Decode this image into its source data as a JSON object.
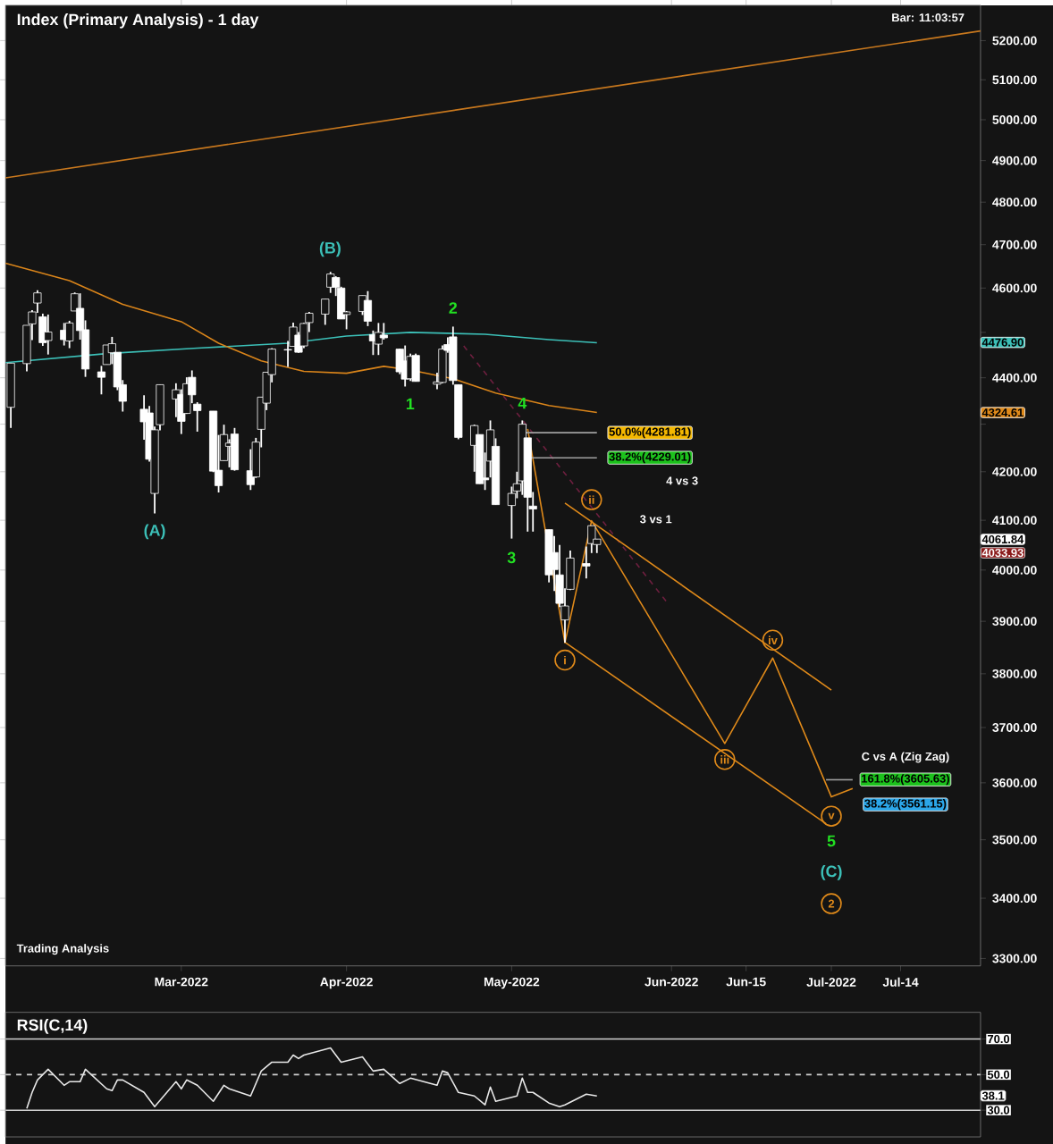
{
  "chart_data": [
    {
      "type": "candlestick",
      "title": "Index (Primary Analysis) - 1 day",
      "color": "#ffffff",
      "log": true,
      "x": [
        "2022-01-28",
        "2022-01-31",
        "2022-02-01",
        "2022-02-02",
        "2022-02-03",
        "2022-02-04",
        "2022-02-07",
        "2022-02-08",
        "2022-02-09",
        "2022-02-10",
        "2022-02-11",
        "2022-02-14",
        "2022-02-15",
        "2022-02-16",
        "2022-02-17",
        "2022-02-18",
        "2022-02-22",
        "2022-02-23",
        "2022-02-24",
        "2022-02-25",
        "2022-02-28",
        "2022-03-01",
        "2022-03-02",
        "2022-03-03",
        "2022-03-04",
        "2022-03-07",
        "2022-03-08",
        "2022-03-09",
        "2022-03-10",
        "2022-03-11",
        "2022-03-14",
        "2022-03-15",
        "2022-03-16",
        "2022-03-17",
        "2022-03-18",
        "2022-03-21",
        "2022-03-22",
        "2022-03-23",
        "2022-03-24",
        "2022-03-25",
        "2022-03-28",
        "2022-03-29",
        "2022-03-30",
        "2022-03-31",
        "2022-04-01",
        "2022-04-04",
        "2022-04-05",
        "2022-04-06",
        "2022-04-07",
        "2022-04-08",
        "2022-04-11",
        "2022-04-12",
        "2022-04-13",
        "2022-04-14",
        "2022-04-18",
        "2022-04-19",
        "2022-04-20",
        "2022-04-21",
        "2022-04-22",
        "2022-04-25",
        "2022-04-26",
        "2022-04-27",
        "2022-04-28",
        "2022-04-29",
        "2022-05-02",
        "2022-05-03",
        "2022-05-04",
        "2022-05-05",
        "2022-05-06",
        "2022-05-09",
        "2022-05-10",
        "2022-05-11",
        "2022-05-12",
        "2022-05-13",
        "2022-05-16",
        "2022-05-17",
        "2022-05-18"
      ],
      "ohlc": [
        [
          4336,
          4432,
          4292,
          4432
        ],
        [
          4431,
          4516,
          4414,
          4516
        ],
        [
          4519,
          4550,
          4483,
          4546
        ],
        [
          4566,
          4595,
          4544,
          4589
        ],
        [
          4535,
          4542,
          4470,
          4477
        ],
        [
          4482,
          4540,
          4451,
          4501
        ],
        [
          4505,
          4521,
          4471,
          4484
        ],
        [
          4481,
          4526,
          4465,
          4521
        ],
        [
          4548,
          4590,
          4548,
          4587
        ],
        [
          4554,
          4588,
          4484,
          4504
        ],
        [
          4506,
          4527,
          4402,
          4419
        ],
        [
          4413,
          4426,
          4364,
          4401
        ],
        [
          4429,
          4472,
          4429,
          4472
        ],
        [
          4455,
          4490,
          4430,
          4475
        ],
        [
          4456,
          4456,
          4373,
          4380
        ],
        [
          4385,
          4395,
          4327,
          4349
        ],
        [
          4332,
          4362,
          4267,
          4305
        ],
        [
          4324,
          4339,
          4221,
          4226
        ],
        [
          4155,
          4295,
          4114,
          4288
        ],
        [
          4299,
          4385,
          4287,
          4385
        ],
        [
          4354,
          4388,
          4315,
          4374
        ],
        [
          4364,
          4375,
          4279,
          4306
        ],
        [
          4323,
          4401,
          4322,
          4387
        ],
        [
          4401,
          4416,
          4345,
          4363
        ],
        [
          4343,
          4347,
          4284,
          4329
        ],
        [
          4328,
          4328,
          4199,
          4201
        ],
        [
          4203,
          4277,
          4157,
          4171
        ],
        [
          4223,
          4299,
          4223,
          4278
        ],
        [
          4253,
          4268,
          4209,
          4260
        ],
        [
          4279,
          4292,
          4202,
          4204
        ],
        [
          4202,
          4247,
          4162,
          4173
        ],
        [
          4189,
          4271,
          4187,
          4262
        ],
        [
          4289,
          4358,
          4251,
          4358
        ],
        [
          4345,
          4412,
          4330,
          4412
        ],
        [
          4407,
          4465,
          4390,
          4463
        ],
        [
          4462,
          4481,
          4424,
          4461
        ],
        [
          4469,
          4522,
          4469,
          4512
        ],
        [
          4494,
          4501,
          4455,
          4456
        ],
        [
          4470,
          4521,
          4465,
          4520
        ],
        [
          4522,
          4546,
          4501,
          4543
        ],
        [
          4541,
          4575,
          4517,
          4575
        ],
        [
          4602,
          4637,
          4589,
          4632
        ],
        [
          4624,
          4627,
          4582,
          4602
        ],
        [
          4600,
          4603,
          4530,
          4530
        ],
        [
          4540,
          4548,
          4507,
          4546
        ],
        [
          4547,
          4583,
          4539,
          4583
        ],
        [
          4572,
          4593,
          4514,
          4525
        ],
        [
          4495,
          4504,
          4450,
          4481
        ],
        [
          4474,
          4521,
          4450,
          4500
        ],
        [
          4494,
          4521,
          4484,
          4488
        ],
        [
          4463,
          4464,
          4408,
          4413
        ],
        [
          4437,
          4471,
          4381,
          4397
        ],
        [
          4398,
          4453,
          4393,
          4447
        ],
        [
          4449,
          4453,
          4392,
          4392
        ],
        [
          4386,
          4411,
          4375,
          4391
        ],
        [
          4390,
          4471,
          4388,
          4463
        ],
        [
          4473,
          4489,
          4455,
          4460
        ],
        [
          4490,
          4513,
          4385,
          4394
        ],
        [
          4385,
          4385,
          4268,
          4272
        ],
        [
          4255,
          4299,
          4200,
          4297
        ],
        [
          4278,
          4278,
          4175,
          4175
        ],
        [
          4187,
          4240,
          4162,
          4183
        ],
        [
          4222,
          4308,
          4188,
          4288
        ],
        [
          4253,
          4270,
          4132,
          4132
        ],
        [
          4130,
          4169,
          4063,
          4155
        ],
        [
          4160,
          4200,
          4145,
          4175
        ],
        [
          4181,
          4308,
          4152,
          4300
        ],
        [
          4271,
          4271,
          4077,
          4147
        ],
        [
          4129,
          4158,
          4077,
          4123
        ],
        [
          4081,
          4081,
          3976,
          3991
        ],
        [
          4035,
          4068,
          3959,
          4001
        ],
        [
          3991,
          4050,
          3928,
          3935
        ],
        [
          3903,
          3965,
          3859,
          3930
        ],
        [
          3963,
          4039,
          3961,
          4024
        ],
        [
          4013,
          4047,
          3984,
          4008
        ],
        [
          4053,
          4089,
          4034,
          4089
        ],
        [
          4051,
          4062,
          4034,
          4062
        ]
      ],
      "series": [
        {
          "type": "line",
          "color": "#3cc0b8",
          "x": [
            "2022-01-27",
            "2022-02-15",
            "2022-03-04",
            "2022-03-21",
            "2022-04-01",
            "2022-04-13",
            "2022-04-27",
            "2022-05-09",
            "2022-05-18"
          ],
          "values": [
            4433,
            4453,
            4465,
            4476,
            4492,
            4500,
            4496,
            4484,
            4477
          ]
        },
        {
          "type": "line",
          "color": "#d9841a",
          "x": [
            "2022-01-27",
            "2022-02-08",
            "2022-02-18",
            "2022-03-01",
            "2022-03-08",
            "2022-03-16",
            "2022-03-24",
            "2022-04-01",
            "2022-04-08",
            "2022-04-13",
            "2022-04-21",
            "2022-04-29",
            "2022-05-09",
            "2022-05-18"
          ],
          "values": [
            4657,
            4617,
            4563,
            4524,
            4476,
            4437,
            4414,
            4410,
            4425,
            4417,
            4398,
            4367,
            4340,
            4325
          ]
        },
        {
          "type": "line",
          "color": "#c8781e",
          "x": [
            "2022-01-27",
            "2022-07-29"
          ],
          "values": [
            4858,
            5225
          ]
        },
        {
          "type": "line",
          "color": "#6e1f3f",
          "line_style": "dashed",
          "x": [
            "2022-04-23",
            "2022-05-31"
          ],
          "values": [
            4470,
            3939
          ]
        },
        {
          "type": "line",
          "color": "#e08a1a",
          "x": [
            "2022-05-05",
            "2022-05-12",
            "2022-05-17",
            "2022-06-11",
            "2022-06-20",
            "2022-07-01",
            "2022-07-05"
          ],
          "values": [
            4290,
            3859,
            4099,
            3671,
            3830,
            3575,
            3590
          ]
        },
        {
          "type": "line",
          "color": "#e08a1a",
          "x": [
            "2022-05-12",
            "2022-07-01"
          ],
          "values": [
            4135,
            3770
          ]
        },
        {
          "type": "line",
          "color": "#e08a1a",
          "x": [
            "2022-05-12",
            "2022-06-30"
          ],
          "values": [
            3860,
            3528
          ]
        },
        {
          "type": "line",
          "color": "#a0a0a0",
          "x": [
            "2022-05-04",
            "2022-05-18"
          ],
          "values": [
            4281.81,
            4281.81
          ]
        },
        {
          "type": "line",
          "color": "#a0a0a0",
          "x": [
            "2022-05-05",
            "2022-05-18"
          ],
          "values": [
            4229.01,
            4229.01
          ]
        },
        {
          "type": "line",
          "color": "#a0a0a0",
          "x": [
            "2022-06-30",
            "2022-07-05"
          ],
          "values": [
            3605.63,
            3605.63
          ]
        }
      ],
      "xlim": [
        "2022-01-27",
        "2022-07-29"
      ],
      "xticks": [
        {
          "value": "2022-03-01",
          "label": "Mar-2022"
        },
        {
          "value": "2022-04-01",
          "label": "Apr-2022"
        },
        {
          "value": "2022-05-02",
          "label": "May-2022"
        },
        {
          "value": "2022-06-01",
          "label": "Jun-2022"
        },
        {
          "value": "2022-06-15",
          "label": "Jun-15"
        },
        {
          "value": "2022-07-01",
          "label": "Jul-2022"
        },
        {
          "value": "2022-07-14",
          "label": "Jul-14"
        }
      ],
      "ylim": [
        3288,
        5292
      ],
      "yticks": [
        {
          "value": 3300,
          "label": "3300.00"
        },
        {
          "value": 3400,
          "label": "3400.00"
        },
        {
          "value": 3500,
          "label": "3500.00"
        },
        {
          "value": 3600,
          "label": "3600.00"
        },
        {
          "value": 3700,
          "label": "3700.00"
        },
        {
          "value": 3800,
          "label": "3800.00"
        },
        {
          "value": 3900,
          "label": "3900.00"
        },
        {
          "value": 4000,
          "label": "4000.00"
        },
        {
          "value": 4100,
          "label": "4100.00"
        },
        {
          "value": 4200,
          "label": "4200.00"
        },
        {
          "value": 4300,
          "label": null
        },
        {
          "value": 4400,
          "label": "4400.00"
        },
        {
          "value": 4500,
          "label": null
        },
        {
          "value": 4600,
          "label": "4600.00"
        },
        {
          "value": 4700,
          "label": "4700.00"
        },
        {
          "value": 4800,
          "label": "4800.00"
        },
        {
          "value": 4900,
          "label": "4900.00"
        },
        {
          "value": 5000,
          "label": "5000.00"
        },
        {
          "value": 5100,
          "label": "5100.00"
        },
        {
          "value": 5200,
          "label": "5200.00"
        }
      ],
      "annotations": [
        "(A)",
        "(B)",
        "1",
        "2",
        "3",
        {
          "text": "4",
          "x": "2022-05-04",
          "y": 4345
        },
        {
          "text": "i",
          "x": "2022-05-12",
          "y": 3826
        },
        {
          "text": "ii",
          "x": "2022-05-17",
          "y": 4142
        },
        {
          "text": "iii",
          "x": "2022-06-11",
          "y": 3642
        },
        {
          "text": "iv",
          "x": "2022-06-20",
          "y": 3864
        },
        {
          "text": "v",
          "x": "2022-07-01",
          "y": 3541
        },
        "5",
        "(C)",
        {
          "text": "2",
          "x": "2022-07-01",
          "y": 3391
        },
        "4 vs 3",
        "3 vs 1",
        "C vs A (Zig Zag)",
        "50.0%(4281.81)",
        "38.2%(4229.01)",
        "161.8%(3605.63)",
        "38.2%(3561.15)",
        "4476.90",
        "4324.61",
        "4061.84",
        "4033.93",
        "Bar: 11:03:57",
        "Trading Analysis"
      ]
    },
    {
      "type": "line",
      "title": "RSI(C,14)",
      "color": "#e8e8e8",
      "tick_labels": "y",
      "x": [
        "2022-01-31",
        "2022-02-01",
        "2022-02-02",
        "2022-02-04",
        "2022-02-07",
        "2022-02-08",
        "2022-02-10",
        "2022-02-11",
        "2022-02-15",
        "2022-02-16",
        "2022-02-17",
        "2022-02-18",
        "2022-02-22",
        "2022-02-24",
        "2022-02-28",
        "2022-03-01",
        "2022-03-02",
        "2022-03-04",
        "2022-03-07",
        "2022-03-09",
        "2022-03-10",
        "2022-03-14",
        "2022-03-16",
        "2022-03-18",
        "2022-03-21",
        "2022-03-22",
        "2022-03-23",
        "2022-03-24",
        "2022-03-29",
        "2022-03-30",
        "2022-03-31",
        "2022-04-04",
        "2022-04-06",
        "2022-04-08",
        "2022-04-11",
        "2022-04-13",
        "2022-04-18",
        "2022-04-19",
        "2022-04-20",
        "2022-04-22",
        "2022-04-25",
        "2022-04-27",
        "2022-04-28",
        "2022-04-29",
        "2022-05-03",
        "2022-05-04",
        "2022-05-05",
        "2022-05-06",
        "2022-05-09",
        "2022-05-11",
        "2022-05-12",
        "2022-05-16",
        "2022-05-18"
      ],
      "values": [
        31,
        40,
        47,
        53,
        44,
        46,
        46,
        53,
        42,
        41,
        47,
        47,
        40,
        32,
        46,
        42,
        47,
        44,
        35,
        44,
        42,
        38,
        52,
        57,
        57,
        61,
        59,
        61,
        65,
        61,
        57,
        60,
        52,
        53,
        45,
        48,
        44,
        52,
        51,
        40,
        38,
        33,
        43,
        35,
        38,
        48,
        40,
        40,
        34,
        32,
        33,
        39,
        38
      ],
      "xlim": [
        "2022-01-27",
        "2022-07-29"
      ],
      "ylim": [
        15,
        85
      ],
      "yticks": [
        {
          "value": 30,
          "label": "30.0"
        },
        {
          "value": 50,
          "label": "50.0"
        },
        {
          "value": 70,
          "label": "70.0"
        }
      ],
      "ref_lines": [
        {
          "axis": "y",
          "value": 70,
          "color": "#d0d0d0",
          "line_style": "solid"
        },
        {
          "axis": "y",
          "value": 50,
          "color": "#d0d0d0",
          "line_style": "dashed"
        },
        {
          "axis": "y",
          "value": 30,
          "color": "#d0d0d0",
          "line_style": "solid"
        }
      ],
      "annotations": [
        "38.1"
      ]
    }
  ]
}
